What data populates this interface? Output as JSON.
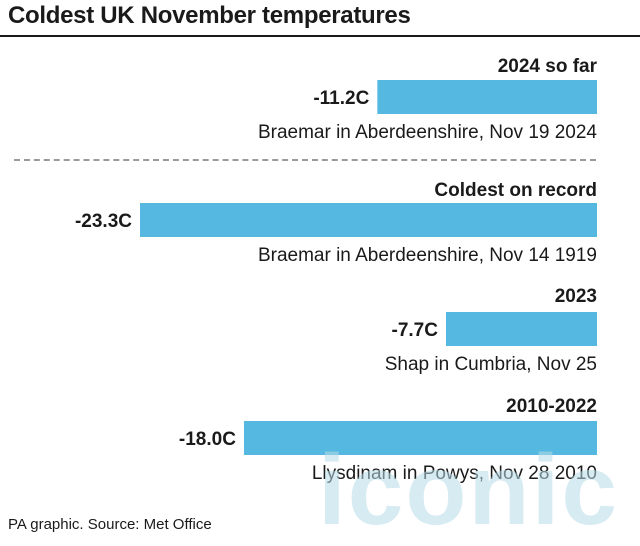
{
  "title": "Coldest UK November temperatures",
  "source": "PA graphic. Source: Met Office",
  "watermark": "iconic",
  "colors": {
    "bar": "#55b8e0",
    "text": "#1a1a1a",
    "divider": "#9a9a9a"
  },
  "chart_data": {
    "type": "bar",
    "orientation": "horizontal",
    "unit": "C",
    "categories": [
      "2024 so far",
      "Coldest on record",
      "2023",
      "2010-2022"
    ],
    "values": [
      -11.2,
      -23.3,
      -7.7,
      -18.0
    ],
    "value_labels": [
      "-11.2C",
      "-23.3C",
      "-7.7C",
      "-18.0C"
    ],
    "locations": [
      "Braemar in Aberdeenshire, Nov 19 2024",
      "Braemar in Aberdeenshire, Nov 14 1919",
      "Shap in Cumbria, Nov 25",
      "Llysdinam in Powys, Nov 28 2010"
    ],
    "xlim": [
      -23.3,
      0
    ],
    "grid": false,
    "legend": "none"
  }
}
